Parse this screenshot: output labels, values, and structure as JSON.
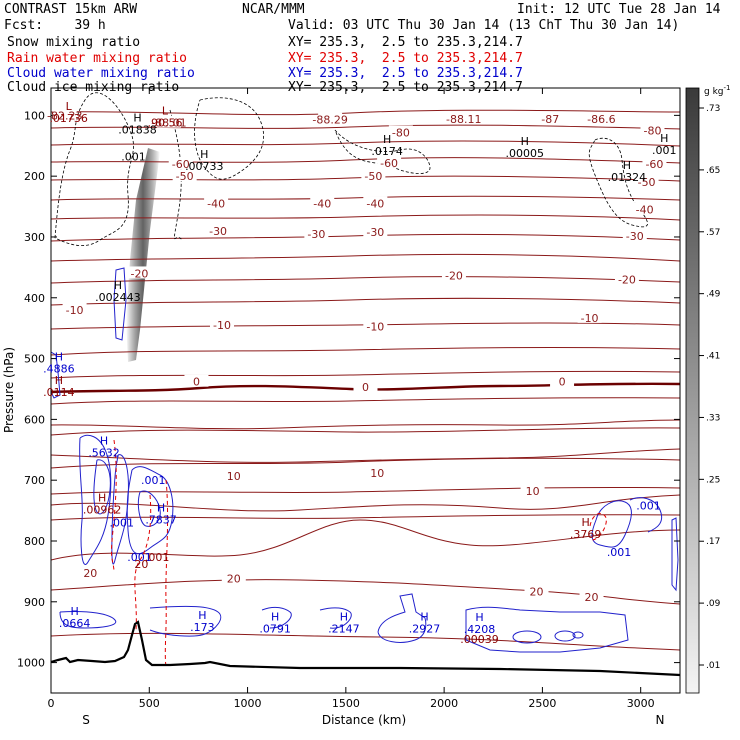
{
  "header": {
    "model": "CONTRAST 15km ARW",
    "org": "NCAR/MMM",
    "init": "Init: 12 UTC Tue 28 Jan 14",
    "fcst": "Fcst:    39 h",
    "valid": "Valid: 03 UTC Thu 30 Jan 14 (13 ChT Thu 30 Jan 14)",
    "fields": [
      {
        "name": "Snow mixing ratio",
        "xy": "XY= 235.3,  2.5 to 235.3,214.7",
        "color": "#000000"
      },
      {
        "name": "Rain water mixing ratio",
        "xy": "XY= 235.3,  2.5 to 235.3,214.7",
        "color": "#e00000"
      },
      {
        "name": "Cloud water mixing ratio",
        "xy": "XY= 235.3,  2.5 to 235.3,214.7",
        "color": "#0000cc"
      },
      {
        "name": "Cloud ice mixing ratio",
        "xy": "XY= 235.3,  2.5 to 235.3,214.7",
        "color": "#000000"
      }
    ]
  },
  "chart_data": {
    "type": "contour",
    "xlabel": "Distance (km)",
    "ylabel": "Pressure (hPa)",
    "xlim": [
      0,
      3200
    ],
    "ylim": [
      1050,
      55
    ],
    "x_ticks": [
      0,
      500,
      1000,
      1500,
      2000,
      2500,
      3000
    ],
    "y_ticks": [
      100,
      200,
      300,
      400,
      500,
      600,
      700,
      800,
      900,
      1000
    ],
    "x_end_labels": {
      "left": "S",
      "right": "N"
    },
    "colorbar": {
      "unit": "g kg",
      "unit_sup": "-1",
      "levels": [
        ".01",
        ".09",
        ".17",
        ".25",
        ".33",
        ".41",
        ".49",
        ".57",
        ".65",
        ".73"
      ]
    },
    "temperature_isotherm_labels": [
      {
        "x": 70,
        "p": 100,
        "t": "-82.23"
      },
      {
        "x": 600,
        "p": 112,
        "t": "-88.01"
      },
      {
        "x": 1420,
        "p": 107,
        "t": "-88.29"
      },
      {
        "x": 2100,
        "p": 106,
        "t": "-88.11"
      },
      {
        "x": 2540,
        "p": 106,
        "t": "-87"
      },
      {
        "x": 2800,
        "p": 106,
        "t": "-86.6"
      },
      {
        "x": 3060,
        "p": 125,
        "t": "-80"
      },
      {
        "x": 1780,
        "p": 128,
        "t": "-80"
      },
      {
        "x": 660,
        "p": 180,
        "t": "-60"
      },
      {
        "x": 1720,
        "p": 178,
        "t": "-60"
      },
      {
        "x": 3070,
        "p": 180,
        "t": "-60"
      },
      {
        "x": 680,
        "p": 200,
        "t": "-50"
      },
      {
        "x": 1640,
        "p": 200,
        "t": "-50"
      },
      {
        "x": 3030,
        "p": 210,
        "t": "-50"
      },
      {
        "x": 840,
        "p": 245,
        "t": "-40"
      },
      {
        "x": 1380,
        "p": 245,
        "t": "-40"
      },
      {
        "x": 1650,
        "p": 245,
        "t": "-40"
      },
      {
        "x": 3020,
        "p": 255,
        "t": "-40"
      },
      {
        "x": 850,
        "p": 290,
        "t": "-30"
      },
      {
        "x": 1350,
        "p": 295,
        "t": "-30"
      },
      {
        "x": 1650,
        "p": 292,
        "t": "-30"
      },
      {
        "x": 2970,
        "p": 298,
        "t": "-30"
      },
      {
        "x": 450,
        "p": 360,
        "t": "-20"
      },
      {
        "x": 2050,
        "p": 363,
        "t": "-20"
      },
      {
        "x": 2930,
        "p": 370,
        "t": "-20"
      },
      {
        "x": 120,
        "p": 420,
        "t": "-10"
      },
      {
        "x": 870,
        "p": 445,
        "t": "-10"
      },
      {
        "x": 1650,
        "p": 447,
        "t": "-10"
      },
      {
        "x": 2740,
        "p": 433,
        "t": "-10"
      },
      {
        "x": 740,
        "p": 538,
        "t": "0"
      },
      {
        "x": 1600,
        "p": 547,
        "t": "0"
      },
      {
        "x": 2600,
        "p": 538,
        "t": "0"
      },
      {
        "x": 930,
        "p": 693,
        "t": "10"
      },
      {
        "x": 1660,
        "p": 688,
        "t": "10"
      },
      {
        "x": 2450,
        "p": 718,
        "t": "10"
      },
      {
        "x": 200,
        "p": 853,
        "t": "20"
      },
      {
        "x": 930,
        "p": 862,
        "t": "20"
      },
      {
        "x": 2470,
        "p": 883,
        "t": "20"
      },
      {
        "x": 2750,
        "p": 892,
        "t": "20"
      }
    ],
    "maxima_labels": [
      {
        "x": 90,
        "p": 98,
        "label": "L",
        "sub": ".01736",
        "color": "#8b0000"
      },
      {
        "x": 580,
        "p": 105,
        "label": "L",
        "sub": ".90.56",
        "color": "#8b0000"
      },
      {
        "x": 440,
        "p": 117,
        "label": "H",
        "sub": ".01838",
        "color": "#000000"
      },
      {
        "x": 1710,
        "p": 152,
        "label": "H",
        "sub": ".0174",
        "color": "#000000"
      },
      {
        "x": 2410,
        "p": 155,
        "label": "H",
        "sub": ".00005",
        "color": "#000000"
      },
      {
        "x": 3120,
        "p": 150,
        "label": "H",
        "sub": ".001",
        "color": "#000000"
      },
      {
        "x": 780,
        "p": 177,
        "label": "H",
        "sub": ".00733",
        "color": "#000000"
      },
      {
        "x": 2930,
        "p": 195,
        "label": "H",
        "sub": ".01324",
        "color": "#000000"
      },
      {
        "x": 340,
        "p": 392,
        "label": "H",
        "sub": ".002443",
        "color": "#000000"
      },
      {
        "x": 40,
        "p": 510,
        "label": "H",
        "sub": ".4886",
        "color": "#0000cc"
      },
      {
        "x": 40,
        "p": 548,
        "label": "H",
        "sub": ".0114",
        "color": "#8b0000"
      },
      {
        "x": 270,
        "p": 648,
        "label": "H",
        "sub": ".5632",
        "color": "#0000cc"
      },
      {
        "x": 260,
        "p": 742,
        "label": "H",
        "sub": ".00962",
        "color": "#8b0000"
      },
      {
        "x": 560,
        "p": 758,
        "label": "H",
        "sub": ".7837",
        "color": "#0000cc"
      },
      {
        "x": 2720,
        "p": 782,
        "label": "H",
        "sub": ".3769",
        "color": "#8b0000"
      },
      {
        "x": 120,
        "p": 928,
        "label": "H",
        "sub": ".0664",
        "color": "#0000cc"
      },
      {
        "x": 770,
        "p": 935,
        "label": "H",
        "sub": ".173",
        "color": "#0000cc"
      },
      {
        "x": 1140,
        "p": 937,
        "label": "H",
        "sub": ".0791",
        "color": "#0000cc"
      },
      {
        "x": 1490,
        "p": 937,
        "label": "H",
        "sub": ".2147",
        "color": "#0000cc"
      },
      {
        "x": 1900,
        "p": 937,
        "label": "H",
        "sub": ".2927",
        "color": "#0000cc"
      },
      {
        "x": 2180,
        "p": 938,
        "label": "H",
        "sub": ".4208",
        "color": "#0000cc"
      },
      {
        "x": 2180,
        "p": 955,
        "label": "",
        "sub": ".00039",
        "color": "#8b0000"
      }
    ],
    "mixing_ratio_labels": [
      {
        "x": 420,
        "p": 168,
        "t": ".001",
        "color": "#000000"
      },
      {
        "x": 520,
        "p": 700,
        "t": ".001",
        "color": "#0000cc"
      },
      {
        "x": 360,
        "p": 770,
        "t": ".001",
        "color": "#0000cc"
      },
      {
        "x": 450,
        "p": 826,
        "t": ".001",
        "color": "#0000cc"
      },
      {
        "x": 460,
        "p": 838,
        "t": "20",
        "color": "#8b0000"
      },
      {
        "x": 540,
        "p": 826,
        "t": ".001",
        "color": "#8b0000"
      },
      {
        "x": 3040,
        "p": 742,
        "t": ".001",
        "color": "#0000cc"
      },
      {
        "x": 2890,
        "p": 818,
        "t": ".001",
        "color": "#0000cc"
      }
    ],
    "grid": false
  }
}
